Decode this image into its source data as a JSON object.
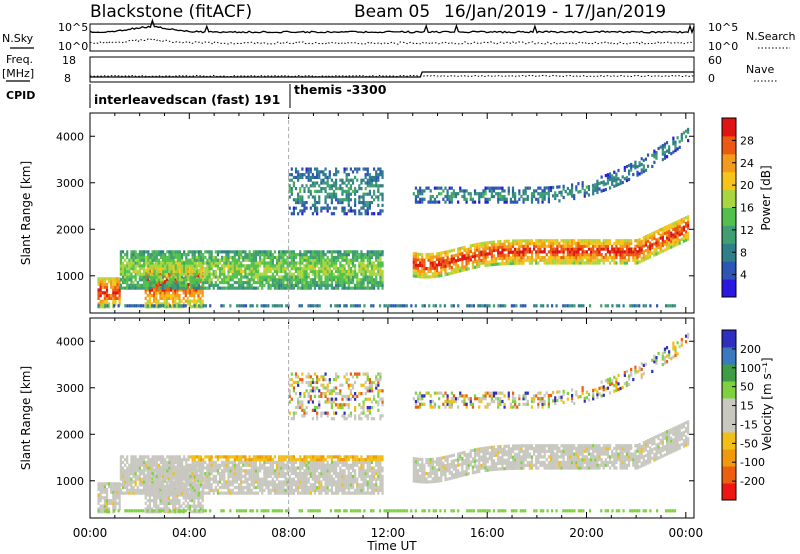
{
  "header": {
    "radar": "Blackstone (fitACF)",
    "beam": "Beam 05",
    "dates": "16/Jan/2019 - 17/Jan/2019"
  },
  "noise_panel": {
    "left_label": "N.Sky",
    "right_label": "N.Search",
    "left_ticks": [
      "10^5",
      "10^0"
    ],
    "right_ticks": [
      "10^5",
      "10^0"
    ]
  },
  "freq_panel": {
    "left_label_1": "Freq.",
    "left_label_2": "[MHz]",
    "right_label": "Nave",
    "left_ticks": [
      "18",
      "8"
    ],
    "right_ticks": [
      "60",
      "0"
    ]
  },
  "cpid_panel": {
    "label": "CPID",
    "segments": [
      {
        "text": "interleavedscan (fast) 191",
        "start_hour": 0.5,
        "end_hour": 8.0
      },
      {
        "text": "themis -3300",
        "start_hour": 8.0,
        "end_hour": 24.2
      }
    ]
  },
  "colors": {
    "power_scale": [
      "#2a17e0",
      "#2d55b5",
      "#2f7f8a",
      "#3f9e72",
      "#53c04b",
      "#a8d640",
      "#f7c519",
      "#f39b1a",
      "#ec5a12",
      "#e01412"
    ],
    "velocity_scale": [
      "#ee1515",
      "#ec5f10",
      "#f09a0b",
      "#f2bf19",
      "#c8c8c0",
      "#c8c8c0",
      "#7ed23f",
      "#3f9e45",
      "#3a78c0",
      "#2e2fbf"
    ]
  },
  "chart_data": [
    {
      "type": "heatmap",
      "title": "",
      "xlabel": "Time UT",
      "ylabel": "Slant Range [km]",
      "xlim_hours": [
        0,
        24.33
      ],
      "ylim": [
        200,
        4500
      ],
      "x_ticks": [
        "00:00",
        "04:00",
        "08:00",
        "12:00",
        "16:00",
        "20:00",
        "00:00"
      ],
      "y_ticks": [
        "1000",
        "2000",
        "3000",
        "4000"
      ],
      "colorbar": {
        "label": "Power [dB]",
        "ticks": [
          "4",
          "8",
          "12",
          "16",
          "20",
          "24",
          "28"
        ],
        "range": [
          0,
          30
        ]
      },
      "echo_bands": [
        {
          "t0": 0.3,
          "t1": 1.2,
          "r0": 300,
          "r1": 950,
          "level": "high"
        },
        {
          "t0": 2.2,
          "t1": 4.5,
          "r0": 300,
          "r1": 1300,
          "level": "high"
        },
        {
          "t0": 1.2,
          "t1": 11.8,
          "r0": 700,
          "r1": 1500,
          "level": "medium"
        },
        {
          "t0": 8.0,
          "t1": 11.8,
          "r0": 2300,
          "r1": 3300,
          "level": "low"
        },
        {
          "t0": 13.0,
          "t1": 24.1,
          "r0": 1100,
          "r1": 1800,
          "level": "high"
        },
        {
          "t0": 13.0,
          "t1": 24.1,
          "r0": 2500,
          "r1": 3800,
          "level": "low"
        }
      ]
    },
    {
      "type": "heatmap",
      "title": "",
      "xlabel": "Time UT",
      "ylabel": "Slant Range [km]",
      "xlim_hours": [
        0,
        24.33
      ],
      "ylim": [
        200,
        4500
      ],
      "x_ticks": [
        "00:00",
        "04:00",
        "08:00",
        "12:00",
        "16:00",
        "20:00",
        "00:00"
      ],
      "y_ticks": [
        "1000",
        "2000",
        "3000",
        "4000"
      ],
      "colorbar": {
        "label": "Velocity [m s⁻¹]",
        "ticks": [
          "-200",
          "-100",
          "-50",
          "-15",
          "15",
          "50",
          "100",
          "200"
        ],
        "range": [
          -250,
          250
        ]
      },
      "echo_bands": [
        {
          "t0": 0.3,
          "t1": 11.8,
          "r0": 300,
          "r1": 1400,
          "velocity": "low"
        },
        {
          "t0": 4.0,
          "t1": 11.8,
          "r0": 800,
          "r1": 1500,
          "velocity": "-50"
        },
        {
          "t0": 13.0,
          "t1": 24.1,
          "r0": 1100,
          "r1": 2500,
          "velocity": "low"
        },
        {
          "t0": 8.0,
          "t1": 24.1,
          "r0": 2400,
          "r1": 4200,
          "velocity": "mixed"
        }
      ]
    }
  ]
}
